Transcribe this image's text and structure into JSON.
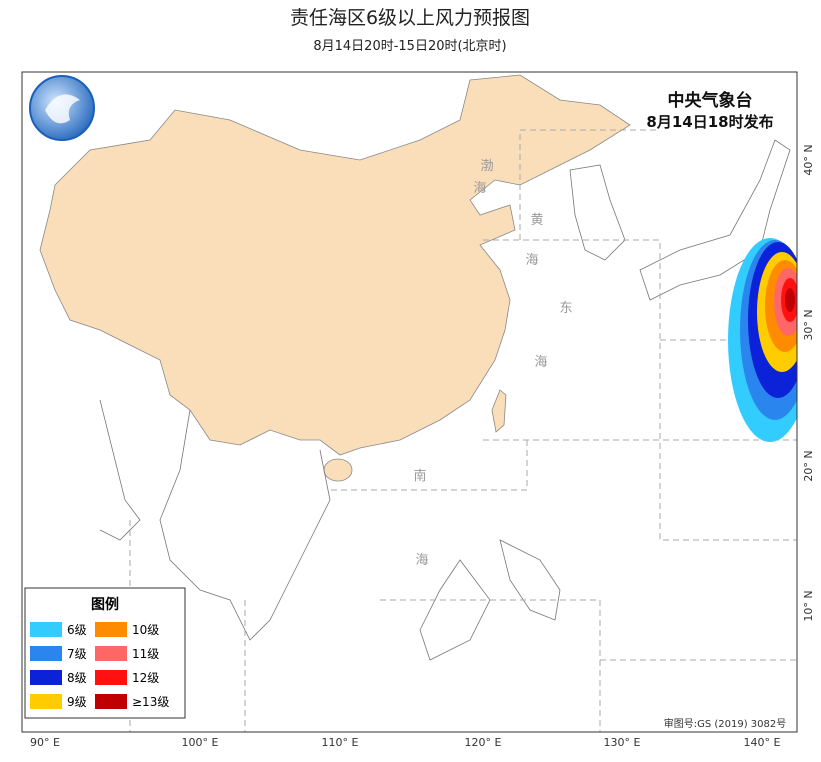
{
  "header": {
    "title": "责任海区6级以上风力预报图",
    "subtitle": "8月14日20时-15日20时(北京时)"
  },
  "issuer": {
    "agency": "中央气象台",
    "issued": "8月14日18时发布"
  },
  "legend": {
    "title": "图例",
    "items": [
      {
        "label": "6级",
        "color": "#33ccff"
      },
      {
        "label": "7级",
        "color": "#2a86ee"
      },
      {
        "label": "8级",
        "color": "#0c22d8"
      },
      {
        "label": "9级",
        "color": "#ffcc00"
      },
      {
        "label": "10级",
        "color": "#ff8c00"
      },
      {
        "label": "11级",
        "color": "#ff6666"
      },
      {
        "label": "12级",
        "color": "#ff1111"
      },
      {
        "label": "≥13级",
        "color": "#c00000"
      }
    ]
  },
  "lon_labels": [
    "90° E",
    "100° E",
    "110° E",
    "120° E",
    "130° E",
    "140° E"
  ],
  "lat_labels": [
    "10° N",
    "20° N",
    "30° N",
    "40° N"
  ],
  "sea_labels": [
    "渤",
    "海",
    "黄",
    "海",
    "东",
    "海",
    "南",
    "海"
  ],
  "footer": {
    "approval": "审图号:GS (2019) 3082号"
  }
}
